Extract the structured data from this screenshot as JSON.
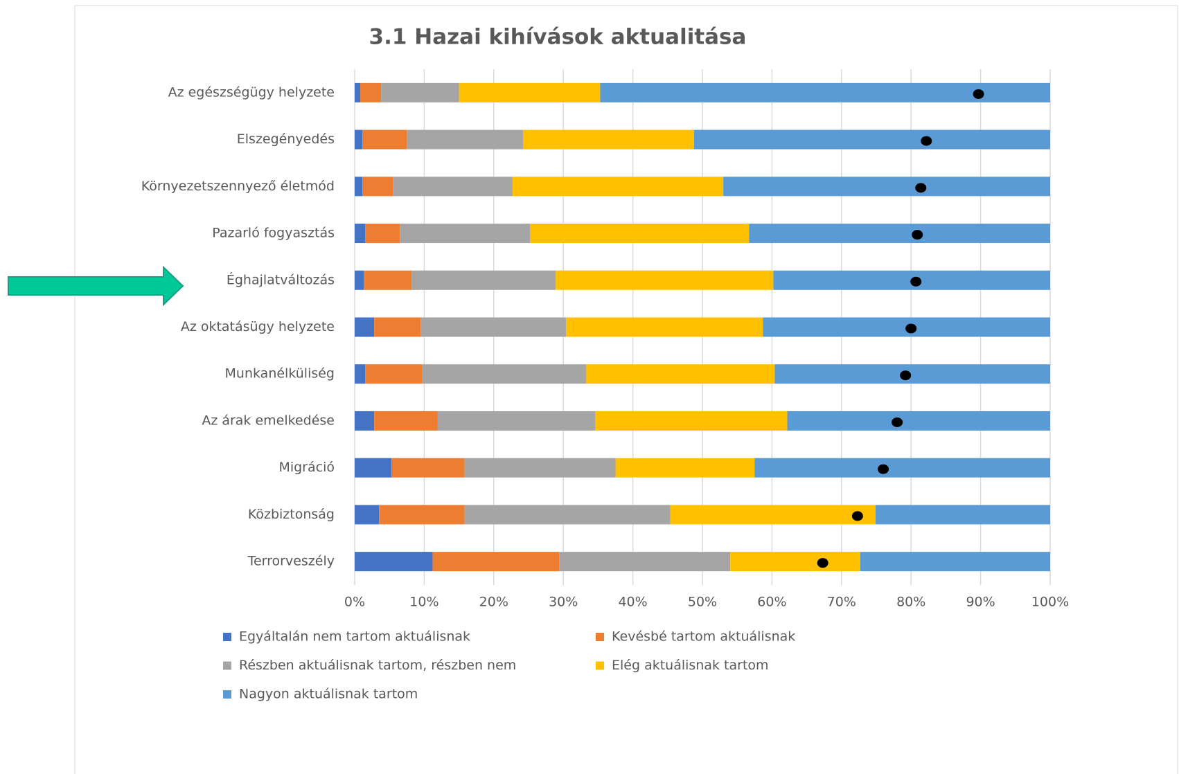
{
  "chart_data": {
    "type": "stacked_barh",
    "title": "3.1 Hazai kihívások aktualitása",
    "categories": [
      "Az egészségügy helyzete",
      "Elszegényedés",
      "Környezetszennyező életmód",
      "Pazarló fogyasztás",
      "Éghajlatváltozás",
      "Az oktatásügy helyzete",
      "Munkanélküliség",
      "Az árak emelkedése",
      "Migráció",
      "Közbiztonság",
      "Terrorveszély"
    ],
    "series": [
      {
        "name": "Egyáltalán nem tartom aktuálisnak",
        "color": "#4472c4",
        "values": [
          0.8,
          1.1,
          1.1,
          1.5,
          1.3,
          2.8,
          1.5,
          2.8,
          5.3,
          3.5,
          11.2
        ]
      },
      {
        "name": "Kevésbé tartom aktuálisnak",
        "color": "#ed7d31",
        "values": [
          3.0,
          6.4,
          4.4,
          5.0,
          6.9,
          6.7,
          8.2,
          9.1,
          10.5,
          12.3,
          18.2
        ]
      },
      {
        "name": "Részben aktuálisnak tartom, részben nem",
        "color": "#a5a5a5",
        "values": [
          11.2,
          16.7,
          17.2,
          18.7,
          20.7,
          20.9,
          23.6,
          22.7,
          21.7,
          29.6,
          24.6
        ]
      },
      {
        "name": "Elég aktuálisnak tartom",
        "color": "#ffc000",
        "values": [
          20.3,
          24.6,
          30.3,
          31.5,
          31.3,
          28.3,
          27.1,
          27.6,
          20.0,
          29.5,
          18.7
        ]
      },
      {
        "name": "Nagyon aktuálisnak tartom",
        "color": "#5b9bd5",
        "values": [
          64.7,
          51.2,
          47.0,
          43.3,
          39.8,
          41.3,
          39.6,
          37.8,
          42.5,
          25.1,
          27.3
        ]
      }
    ],
    "dots": {
      "color": "#000000",
      "values": [
        89.7,
        82.2,
        81.4,
        80.9,
        80.7,
        80.0,
        79.2,
        78.0,
        76.0,
        72.3,
        67.3
      ]
    },
    "xlim": [
      0,
      100
    ],
    "xticks": [
      {
        "value": 0,
        "label": "0%"
      },
      {
        "value": 10,
        "label": "10%"
      },
      {
        "value": 20,
        "label": "20%"
      },
      {
        "value": 30,
        "label": "30%"
      },
      {
        "value": 40,
        "label": "40%"
      },
      {
        "value": 50,
        "label": "50%"
      },
      {
        "value": 60,
        "label": "60%"
      },
      {
        "value": 70,
        "label": "70%"
      },
      {
        "value": 80,
        "label": "80%"
      },
      {
        "value": 90,
        "label": "90%"
      },
      {
        "value": 100,
        "label": "100%"
      }
    ],
    "grid": true,
    "legend": "bottom"
  }
}
